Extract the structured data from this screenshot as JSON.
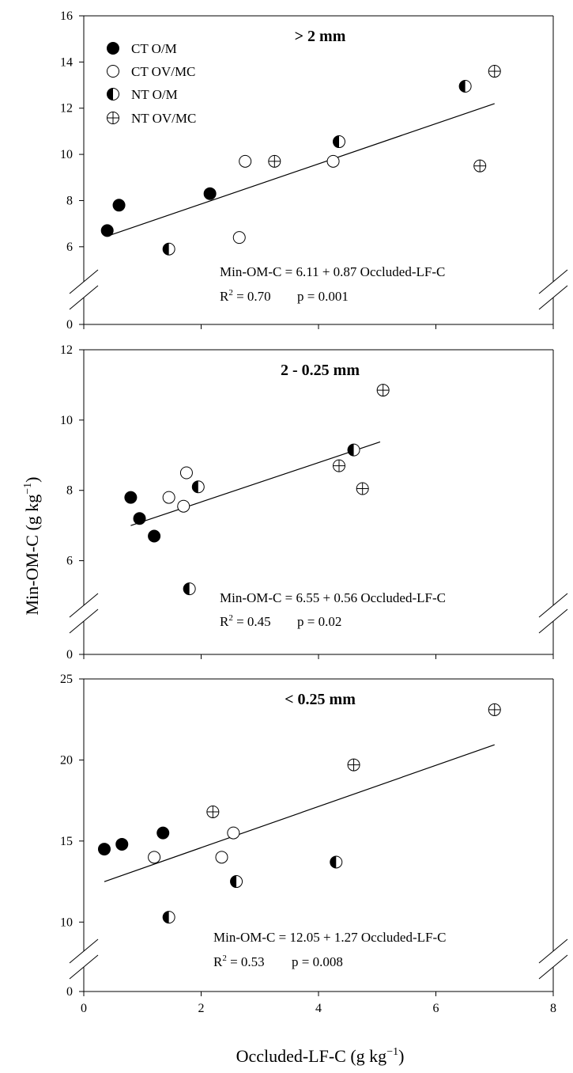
{
  "colors": {
    "axis": "#000000",
    "marker_fill_solid": "#000000",
    "marker_fill_open": "#ffffff",
    "fit_line": "#000000"
  },
  "figure": {
    "y_axis_label": "Min-OM-C (g kg",
    "y_axis_label_sup": "−1",
    "y_axis_label_close": ")",
    "x_axis_label": "Occluded-LF-C (g kg",
    "x_axis_label_sup": "−1",
    "x_axis_label_close": ")"
  },
  "legend": {
    "placement": "top-left of first panel",
    "items": [
      {
        "label": "CT O/M",
        "marker": "filled-circle"
      },
      {
        "label": "CT OV/MC",
        "marker": "open-circle"
      },
      {
        "label": "NT O/M",
        "marker": "half-filled-circle"
      },
      {
        "label": "NT OV/MC",
        "marker": "crossed-circle"
      }
    ]
  },
  "chart_data": [
    {
      "type": "scatter",
      "title": "> 2 mm",
      "xlim": [
        0,
        8
      ],
      "ylim": [
        0,
        16
      ],
      "x_ticks": [
        "0",
        "2",
        "4",
        "6",
        "8"
      ],
      "x_ticks_labeled": false,
      "y_ticks": [
        "0",
        "6",
        "8",
        "10",
        "12",
        "14",
        "16"
      ],
      "axis_break": "between 0 and 6",
      "grid": false,
      "series": [
        {
          "name": "CT O/M",
          "marker": "filled-circle",
          "points": [
            [
              0.4,
              6.7
            ],
            [
              0.6,
              7.8
            ],
            [
              2.15,
              8.3
            ]
          ]
        },
        {
          "name": "CT OV/MC",
          "marker": "open-circle",
          "points": [
            [
              2.65,
              6.4
            ],
            [
              2.75,
              9.7
            ],
            [
              4.25,
              9.7
            ]
          ]
        },
        {
          "name": "NT O/M",
          "marker": "half-filled-circle",
          "points": [
            [
              1.45,
              5.9
            ],
            [
              4.35,
              10.55
            ],
            [
              6.5,
              12.95
            ]
          ]
        },
        {
          "name": "NT OV/MC",
          "marker": "crossed-circle",
          "points": [
            [
              3.25,
              9.7
            ],
            [
              6.75,
              9.5
            ],
            [
              7.0,
              13.6
            ]
          ]
        }
      ],
      "fit": {
        "intercept": 6.11,
        "slope": 0.87,
        "x_range": [
          0.4,
          7.0
        ]
      },
      "equation": "Min-OM-C = 6.11 + 0.87 Occluded-LF-C",
      "stats_r2_label": "R",
      "stats_r2_sup": "2",
      "stats_r2_value": " = 0.70",
      "stats_p": "p = 0.001"
    },
    {
      "type": "scatter",
      "title": "2 - 0.25 mm",
      "xlim": [
        0,
        8
      ],
      "ylim": [
        0,
        12
      ],
      "x_ticks": [
        "0",
        "2",
        "4",
        "6",
        "8"
      ],
      "x_ticks_labeled": false,
      "y_ticks": [
        "0",
        "6",
        "8",
        "10",
        "12"
      ],
      "axis_break": "between 0 and 6",
      "grid": false,
      "series": [
        {
          "name": "CT O/M",
          "marker": "filled-circle",
          "points": [
            [
              0.8,
              7.8
            ],
            [
              0.95,
              7.2
            ],
            [
              1.2,
              6.7
            ]
          ]
        },
        {
          "name": "CT OV/MC",
          "marker": "open-circle",
          "points": [
            [
              1.45,
              7.8
            ],
            [
              1.7,
              7.55
            ],
            [
              1.75,
              8.5
            ]
          ]
        },
        {
          "name": "NT O/M",
          "marker": "half-filled-circle",
          "points": [
            [
              1.8,
              5.2
            ],
            [
              1.95,
              8.1
            ],
            [
              4.6,
              9.15
            ]
          ]
        },
        {
          "name": "NT OV/MC",
          "marker": "crossed-circle",
          "points": [
            [
              4.35,
              8.7
            ],
            [
              4.75,
              8.05
            ],
            [
              5.1,
              10.85
            ]
          ]
        }
      ],
      "fit": {
        "intercept": 6.55,
        "slope": 0.56,
        "x_range": [
          0.8,
          5.05
        ]
      },
      "equation": "Min-OM-C = 6.55 + 0.56 Occluded-LF-C",
      "stats_r2_label": "R",
      "stats_r2_sup": "2",
      "stats_r2_value": " = 0.45",
      "stats_p": "p = 0.02"
    },
    {
      "type": "scatter",
      "title": "< 0.25 mm",
      "xlim": [
        0,
        8
      ],
      "ylim": [
        0,
        25
      ],
      "x_ticks": [
        "0",
        "2",
        "4",
        "6",
        "8"
      ],
      "x_ticks_labeled": true,
      "y_ticks": [
        "0",
        "10",
        "15",
        "20",
        "25"
      ],
      "axis_break": "between 0 and 10",
      "grid": false,
      "series": [
        {
          "name": "CT O/M",
          "marker": "filled-circle",
          "points": [
            [
              0.35,
              14.5
            ],
            [
              0.65,
              14.8
            ],
            [
              1.35,
              15.5
            ]
          ]
        },
        {
          "name": "CT OV/MC",
          "marker": "open-circle",
          "points": [
            [
              1.2,
              14.0
            ],
            [
              2.35,
              14.0
            ],
            [
              2.55,
              15.5
            ]
          ]
        },
        {
          "name": "NT O/M",
          "marker": "half-filled-circle",
          "points": [
            [
              1.45,
              10.3
            ],
            [
              2.6,
              12.5
            ],
            [
              4.3,
              13.7
            ]
          ]
        },
        {
          "name": "NT OV/MC",
          "marker": "crossed-circle",
          "points": [
            [
              2.2,
              16.8
            ],
            [
              4.6,
              19.7
            ],
            [
              7.0,
              23.1
            ]
          ]
        }
      ],
      "fit": {
        "intercept": 12.05,
        "slope": 1.27,
        "x_range": [
          0.35,
          7.0
        ]
      },
      "equation": "Min-OM-C = 12.05 + 1.27 Occluded-LF-C",
      "stats_r2_label": "R",
      "stats_r2_sup": "2",
      "stats_r2_value": " = 0.53",
      "stats_p": "p = 0.008"
    }
  ]
}
